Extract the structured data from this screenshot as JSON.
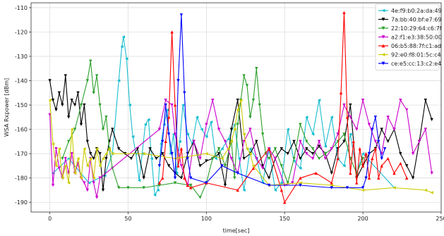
{
  "chart_data": {
    "type": "line",
    "title": "",
    "xlabel": "time[sec]",
    "ylabel": "WSA Rxpower [dBm]",
    "xlim": [
      -12,
      250
    ],
    "ylim": [
      -194,
      -108
    ],
    "xticks": [
      0,
      50,
      100,
      150,
      200,
      250
    ],
    "yticks": [
      -190,
      -180,
      -170,
      -160,
      -150,
      -140,
      -130,
      -120,
      -110
    ],
    "xtick_labels": [
      "0",
      "50",
      "100",
      "150",
      "200",
      "250"
    ],
    "ytick_labels": [
      "-190",
      "-180",
      "-170",
      "-160",
      "-150",
      "-140",
      "-130",
      "-120",
      "-110"
    ],
    "grid": true,
    "legend_position": "top-right",
    "series": [
      {
        "name": "4e:f9:b0:2a:da:49",
        "color": "#17becf",
        "marker": "triangle-left",
        "x": [
          2,
          12,
          25,
          35,
          40,
          44,
          46,
          47,
          49,
          51,
          53,
          55,
          57,
          59,
          61,
          63,
          65,
          67,
          69,
          71,
          73,
          75,
          77,
          79,
          81,
          83,
          85,
          88,
          91,
          94,
          97,
          100,
          103,
          106,
          110,
          114,
          118,
          121,
          124,
          128,
          132,
          136,
          140,
          144,
          148,
          152,
          156,
          160,
          164,
          168,
          172,
          176,
          180,
          184,
          188,
          192,
          196,
          200,
          220
        ],
        "y": [
          -178,
          -172,
          -182,
          -179,
          -170,
          -140,
          -126,
          -122,
          -131,
          -150,
          -163,
          -170,
          -181,
          -170,
          -158,
          -156,
          -172,
          -187,
          -185,
          -166,
          -158,
          -152,
          -170,
          -162,
          -178,
          -165,
          -150,
          -162,
          -166,
          -155,
          -160,
          -163,
          -157,
          -172,
          -168,
          -164,
          -158,
          -172,
          -185,
          -168,
          -172,
          -182,
          -168,
          -185,
          -182,
          -160,
          -173,
          -176,
          -155,
          -162,
          -148,
          -167,
          -155,
          -172,
          -175,
          -162,
          -178,
          -170,
          -184
        ]
      },
      {
        "name": "7a:bb:40:bf:e7:69",
        "color": "#000000",
        "marker": "triangle-down",
        "x": [
          0,
          2,
          4,
          6,
          8,
          10,
          12,
          14,
          16,
          18,
          20,
          22,
          24,
          26,
          28,
          30,
          32,
          34,
          36,
          38,
          40,
          44,
          48,
          52,
          56,
          60,
          64,
          68,
          72,
          76,
          80,
          84,
          88,
          92,
          96,
          100,
          104,
          108,
          112,
          116,
          120,
          124,
          128,
          132,
          136,
          140,
          144,
          148,
          152,
          156,
          160,
          164,
          168,
          172,
          176,
          180,
          184,
          188,
          192,
          196,
          200,
          204,
          208,
          212,
          216,
          220,
          224,
          228,
          232,
          236,
          240,
          244
        ],
        "y": [
          -140,
          -148,
          -152,
          -145,
          -150,
          -138,
          -155,
          -148,
          -150,
          -145,
          -158,
          -150,
          -165,
          -170,
          -172,
          -168,
          -170,
          -185,
          -172,
          -165,
          -160,
          -168,
          -170,
          -172,
          -168,
          -180,
          -168,
          -172,
          -170,
          -175,
          -178,
          -180,
          -170,
          -165,
          -175,
          -173,
          -172,
          -170,
          -183,
          -160,
          -148,
          -172,
          -170,
          -165,
          -175,
          -180,
          -172,
          -168,
          -170,
          -165,
          -172,
          -168,
          -170,
          -167,
          -170,
          -178,
          -168,
          -165,
          -150,
          -180,
          -175,
          -170,
          -168,
          -160,
          -165,
          -160,
          -170,
          -175,
          -180,
          -165,
          -148,
          -156
        ]
      },
      {
        "name": "22:10:29:64:c6:7f",
        "color": "#2ca02c",
        "marker": "triangle-down",
        "x": [
          8,
          12,
          16,
          20,
          24,
          26,
          28,
          30,
          32,
          34,
          36,
          38,
          40,
          44,
          50,
          60,
          70,
          80,
          90,
          96,
          100,
          104,
          108,
          112,
          116,
          118,
          120,
          122,
          124,
          126,
          128,
          130,
          132,
          134,
          136,
          138,
          140,
          144,
          148,
          152,
          156,
          160,
          164,
          168,
          172,
          176,
          180,
          184,
          188,
          192,
          196,
          200
        ],
        "y": [
          -172,
          -165,
          -160,
          -150,
          -140,
          -132,
          -145,
          -138,
          -150,
          -160,
          -155,
          -168,
          -176,
          -184,
          -184,
          -184,
          -183,
          -182,
          -183,
          -188,
          -182,
          -172,
          -168,
          -175,
          -165,
          -180,
          -158,
          -148,
          -138,
          -142,
          -155,
          -148,
          -135,
          -150,
          -162,
          -170,
          -172,
          -168,
          -175,
          -182,
          -172,
          -158,
          -165,
          -168,
          -172,
          -170,
          -168,
          -165,
          -162,
          -172,
          -178,
          -172
        ]
      },
      {
        "name": "a2:f1:e3:38:50:00",
        "color": "#cc00cc",
        "marker": "triangle-down",
        "x": [
          0,
          2,
          4,
          6,
          8,
          10,
          12,
          14,
          16,
          18,
          20,
          22,
          24,
          26,
          28,
          30,
          32,
          70,
          74,
          78,
          80,
          84,
          88,
          92,
          96,
          100,
          104,
          108,
          112,
          116,
          120,
          124,
          128,
          132,
          136,
          140,
          144,
          150,
          155,
          160,
          164,
          168,
          172,
          176,
          180,
          184,
          188,
          192,
          196,
          200,
          204,
          208,
          212,
          216,
          220,
          224,
          228,
          232,
          236,
          240,
          244
        ],
        "y": [
          -154,
          -183,
          -168,
          -176,
          -180,
          -172,
          -178,
          -170,
          -178,
          -174,
          -180,
          -182,
          -185,
          -172,
          -182,
          -188,
          -180,
          -160,
          -148,
          -150,
          -162,
          -175,
          -183,
          -165,
          -172,
          -158,
          -148,
          -160,
          -165,
          -172,
          -178,
          -165,
          -160,
          -172,
          -176,
          -168,
          -172,
          -183,
          -182,
          -165,
          -170,
          -172,
          -165,
          -172,
          -168,
          -162,
          -150,
          -155,
          -160,
          -148,
          -158,
          -165,
          -170,
          -155,
          -160,
          -148,
          -152,
          -170,
          -165,
          -160,
          -178
        ]
      },
      {
        "name": "06:b5:88:7f:c1:ad",
        "color": "#ff0000",
        "marker": "triangle-up",
        "x": [
          70,
          72,
          74,
          76,
          78,
          80,
          82,
          84,
          86,
          88,
          90,
          100,
          120,
          130,
          140,
          148,
          150,
          160,
          170,
          180,
          184,
          186,
          188,
          190,
          192,
          194,
          196,
          198,
          200,
          202,
          204,
          206,
          208,
          210,
          212,
          216,
          220,
          224,
          228
        ],
        "y": [
          -182,
          -180,
          -165,
          -155,
          -120,
          -150,
          -175,
          -168,
          -180,
          -183,
          -184,
          -182,
          -185,
          -176,
          -168,
          -185,
          -190,
          -180,
          -178,
          -182,
          -172,
          -145,
          -112,
          -155,
          -178,
          -165,
          -182,
          -168,
          -175,
          -170,
          -180,
          -172,
          -168,
          -180,
          -175,
          -172,
          -178,
          -174,
          -180
        ]
      },
      {
        "name": "92:e0:f8:01:5c:c4",
        "color": "#cccc00",
        "marker": "triangle-left",
        "x": [
          0,
          2,
          4,
          6,
          8,
          10,
          12,
          14,
          16,
          18,
          20,
          22,
          24,
          26,
          28,
          30,
          32,
          34,
          36,
          38,
          40,
          60,
          80,
          100,
          110,
          114,
          116,
          118,
          120,
          122,
          124,
          126,
          128,
          130,
          140,
          160,
          180,
          200,
          220,
          240,
          244
        ],
        "y": [
          -148,
          -166,
          -175,
          -168,
          -180,
          -175,
          -182,
          -160,
          -178,
          -172,
          -180,
          -168,
          -175,
          -172,
          -180,
          -168,
          -175,
          -172,
          -170,
          -168,
          -170,
          -170,
          -172,
          -170,
          -172,
          -168,
          -165,
          -160,
          -152,
          -148,
          -162,
          -168,
          -170,
          -175,
          -183,
          -182,
          -183,
          -185,
          -184,
          -185,
          -186
        ]
      },
      {
        "name": "ce:e5:cc:13:c2:e4",
        "color": "#0000ff",
        "marker": "triangle-down",
        "x": [
          70,
          72,
          74,
          76,
          78,
          80,
          82,
          84,
          86,
          88,
          90,
          100,
          110,
          120,
          140,
          160,
          180,
          190,
          200,
          202,
          204,
          206,
          208,
          210,
          212,
          214
        ],
        "y": [
          -175,
          -165,
          -150,
          -162,
          -170,
          -180,
          -140,
          -113,
          -145,
          -172,
          -180,
          -182,
          -175,
          -178,
          -183,
          -183,
          -184,
          -184,
          -184,
          -180,
          -170,
          -160,
          -155,
          -165,
          -172,
          -168
        ]
      }
    ]
  }
}
